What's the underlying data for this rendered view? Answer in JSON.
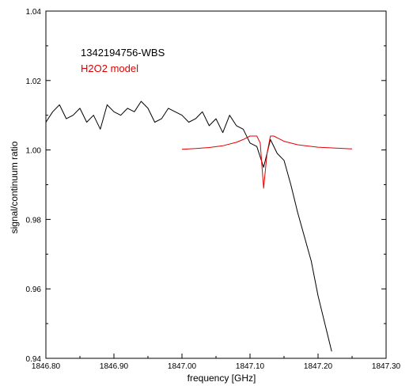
{
  "chart_data": {
    "type": "line",
    "xlabel": "frequency [GHz]",
    "ylabel": "signal/continuum ratio",
    "xlim": [
      1846.8,
      1847.3
    ],
    "ylim": [
      0.94,
      1.04
    ],
    "x_ticks": [
      "1846.80",
      "1846.90",
      "1847.00",
      "1847.10",
      "1847.20",
      "1847.30"
    ],
    "y_ticks": [
      "0.94",
      "0.96",
      "0.98",
      "1.00",
      "1.02",
      "1.04"
    ],
    "legend": [
      {
        "label": "1342194756-WBS",
        "color": "#000000"
      },
      {
        "label": "H2O2 model",
        "color": "#e00000"
      }
    ],
    "series": [
      {
        "name": "1342194756-WBS",
        "color": "#000000",
        "x": [
          1846.8,
          1846.81,
          1846.82,
          1846.83,
          1846.84,
          1846.85,
          1846.86,
          1846.87,
          1846.88,
          1846.89,
          1846.9,
          1846.91,
          1846.92,
          1846.93,
          1846.94,
          1846.95,
          1846.96,
          1846.97,
          1846.98,
          1846.99,
          1847.0,
          1847.01,
          1847.02,
          1847.03,
          1847.04,
          1847.05,
          1847.06,
          1847.07,
          1847.08,
          1847.09,
          1847.1,
          1847.11,
          1847.12,
          1847.13,
          1847.14,
          1847.15,
          1847.16,
          1847.17,
          1847.18,
          1847.19,
          1847.2,
          1847.21,
          1847.22
        ],
        "y": [
          1.008,
          1.011,
          1.013,
          1.009,
          1.01,
          1.012,
          1.008,
          1.01,
          1.006,
          1.013,
          1.011,
          1.01,
          1.012,
          1.011,
          1.014,
          1.012,
          1.008,
          1.009,
          1.012,
          1.011,
          1.01,
          1.008,
          1.009,
          1.011,
          1.007,
          1.009,
          1.005,
          1.01,
          1.007,
          1.006,
          1.002,
          1.001,
          0.995,
          1.003,
          0.999,
          0.997,
          0.99,
          0.982,
          0.975,
          0.968,
          0.958,
          0.95,
          0.942
        ]
      },
      {
        "name": "H2O2 model",
        "color": "#e00000",
        "x": [
          1847.0,
          1847.02,
          1847.04,
          1847.06,
          1847.08,
          1847.09,
          1847.1,
          1847.11,
          1847.115,
          1847.12,
          1847.125,
          1847.13,
          1847.135,
          1847.14,
          1847.15,
          1847.17,
          1847.2,
          1847.25
        ],
        "y": [
          1.0002,
          1.0004,
          1.0007,
          1.0012,
          1.0022,
          1.003,
          1.004,
          1.004,
          1.002,
          0.989,
          0.999,
          1.004,
          1.004,
          1.0035,
          1.0025,
          1.0015,
          1.0008,
          1.0003
        ]
      }
    ]
  }
}
